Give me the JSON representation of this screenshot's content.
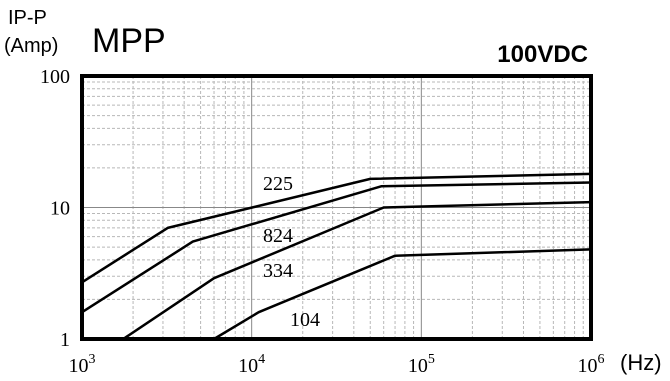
{
  "chart_data": {
    "type": "line",
    "title": "MPP",
    "subtitle": "100VDC",
    "ylabel_line1": "IP-P",
    "ylabel_line2": "(Amp)",
    "xunit": "(Hz)",
    "xscale": "log",
    "yscale": "log",
    "xlim": [
      1000,
      1000000
    ],
    "ylim": [
      1,
      100
    ],
    "grid": true,
    "x_ticks": [
      {
        "base": "10",
        "exp": "3",
        "value": 1000
      },
      {
        "base": "10",
        "exp": "4",
        "value": 10000
      },
      {
        "base": "10",
        "exp": "5",
        "value": 100000
      },
      {
        "base": "10",
        "exp": "6",
        "value": 1000000
      }
    ],
    "y_ticks": [
      {
        "label": "100",
        "value": 100
      },
      {
        "label": "10",
        "value": 10
      },
      {
        "label": "1",
        "value": 1
      }
    ],
    "series": [
      {
        "name": "225",
        "points": [
          [
            1000,
            2.7
          ],
          [
            3200,
            7.0
          ],
          [
            50000,
            16.5
          ],
          [
            1000000,
            18.0
          ]
        ]
      },
      {
        "name": "824",
        "points": [
          [
            1000,
            1.6
          ],
          [
            4500,
            5.5
          ],
          [
            58000,
            14.5
          ],
          [
            1000000,
            15.5
          ]
        ]
      },
      {
        "name": "334",
        "points": [
          [
            1750,
            1.0
          ],
          [
            6000,
            2.9
          ],
          [
            60000,
            10.0
          ],
          [
            1000000,
            11.0
          ]
        ]
      },
      {
        "name": "104",
        "points": [
          [
            6000,
            1.0
          ],
          [
            11000,
            1.6
          ],
          [
            70000,
            4.3
          ],
          [
            1000000,
            4.8
          ]
        ]
      }
    ]
  }
}
